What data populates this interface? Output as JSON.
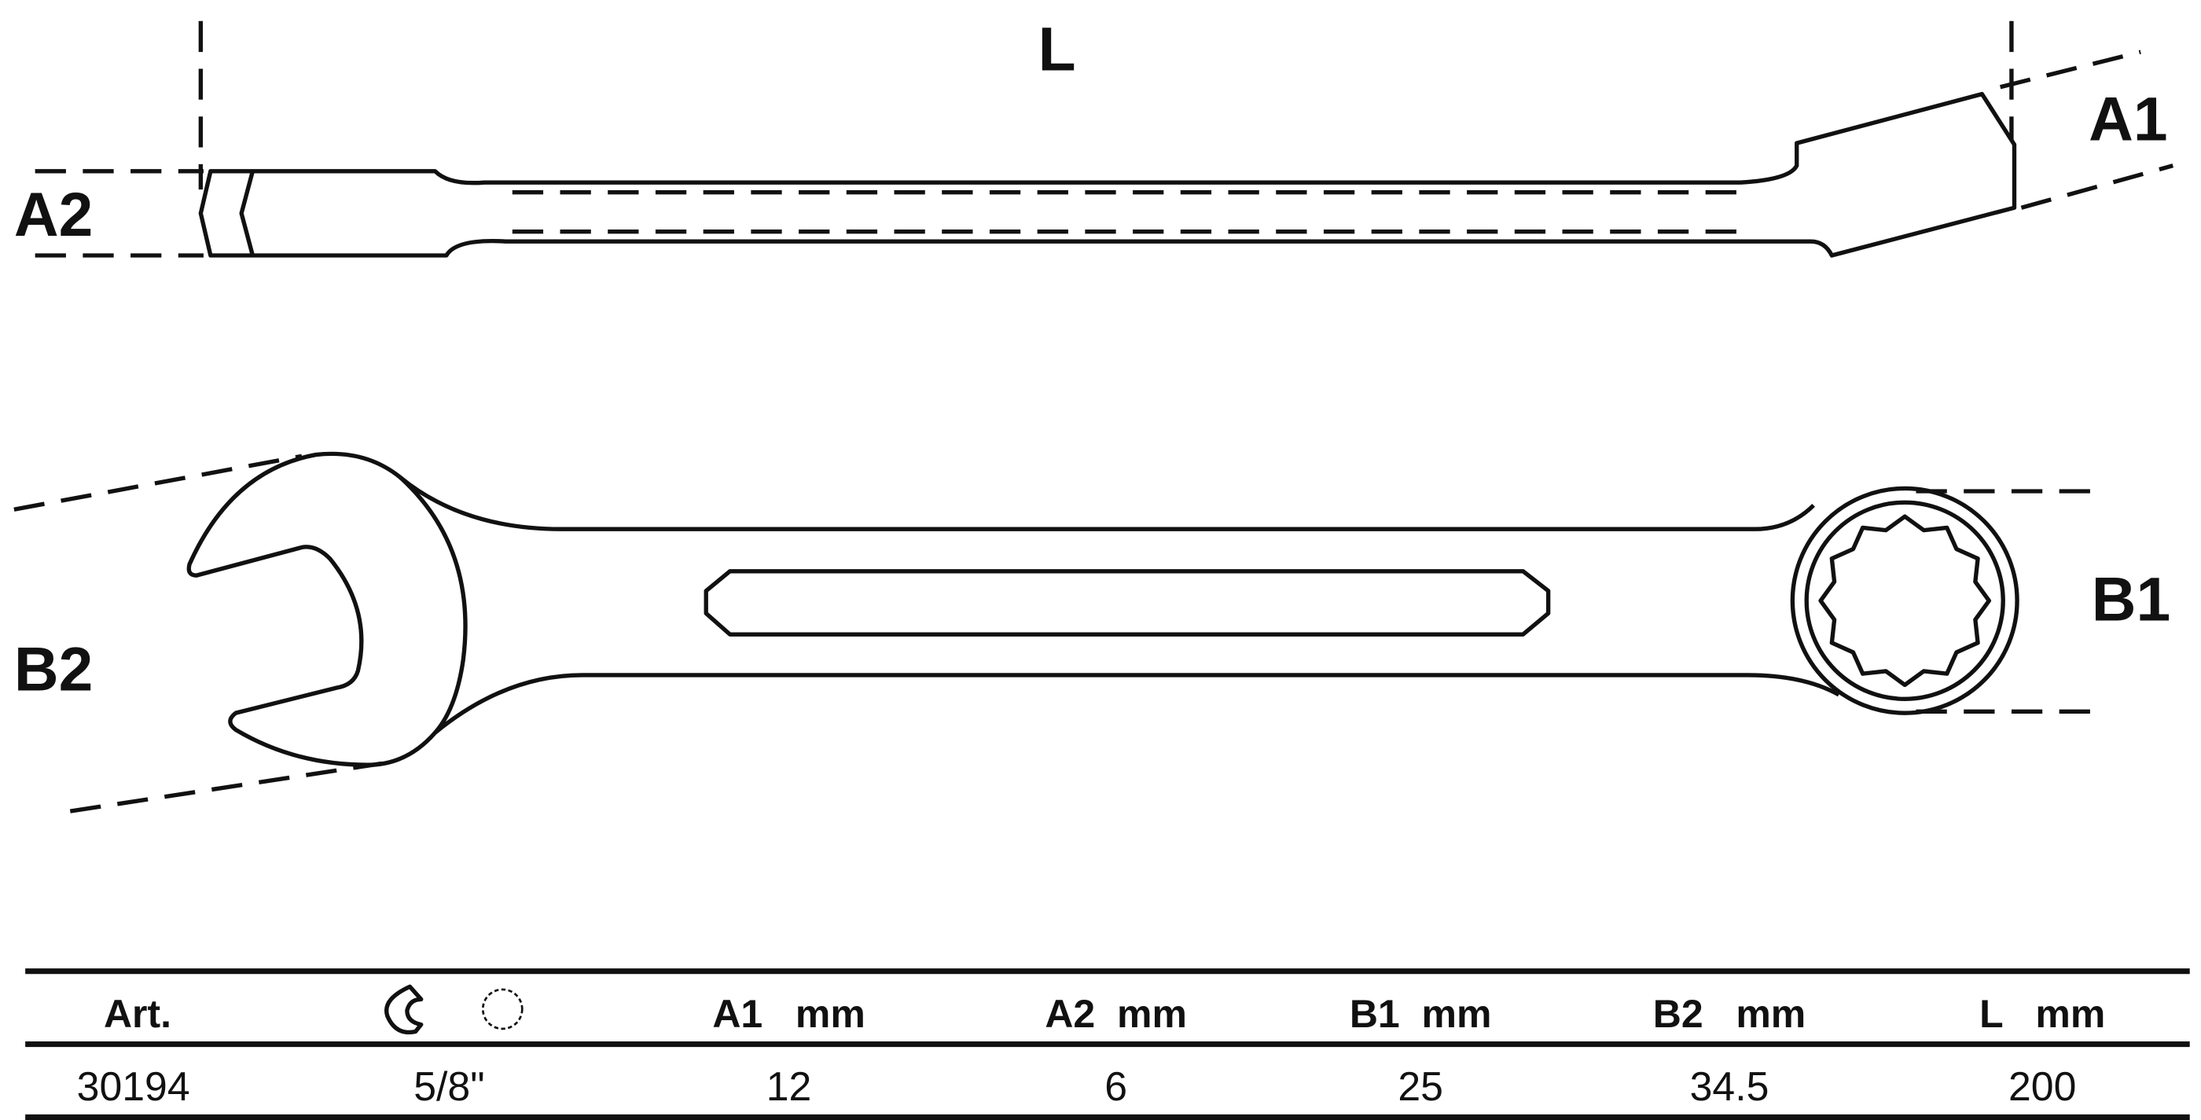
{
  "labels": {
    "L": "L",
    "A1": "A1",
    "A2": "A2",
    "B1": "B1",
    "B2": "B2"
  },
  "table": {
    "headers": [
      "Art.",
      "open-end-and-ring-icon",
      "A1   mm",
      "A2  mm",
      "B1  mm",
      "B2   mm",
      "L   mm"
    ],
    "rows": [
      [
        "30194",
        "5/8\"",
        "12",
        "6",
        "25",
        "34.5",
        "200"
      ]
    ]
  }
}
